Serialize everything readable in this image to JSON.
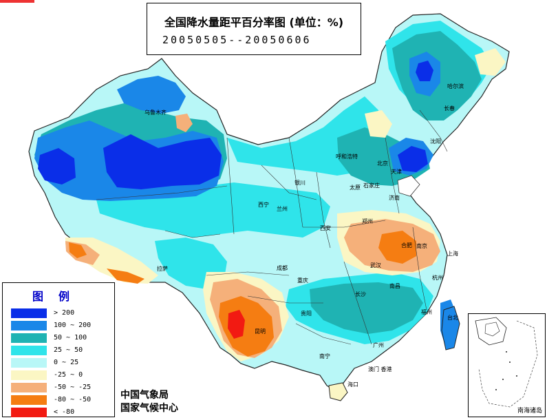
{
  "title": {
    "line1": "全国降水量距平百分率图 (单位：%)",
    "line2": "20050505--20050606"
  },
  "legend": {
    "title": "图例",
    "items": [
      {
        "label": "> 200",
        "color": "#0a2ee8"
      },
      {
        "label": "100 ~ 200",
        "color": "#1a87e8"
      },
      {
        "label": "50 ~ 100",
        "color": "#1fb3b3"
      },
      {
        "label": "25 ~ 50",
        "color": "#2fe4ea"
      },
      {
        "label": "0 ~ 25",
        "color": "#b8f7f7"
      },
      {
        "label": "-25 ~ 0",
        "color": "#fbf6c4"
      },
      {
        "label": "-50 ~ -25",
        "color": "#f5b07a"
      },
      {
        "label": "-80 ~ -50",
        "color": "#f57d12"
      },
      {
        "label": "< -80",
        "color": "#f21a12"
      }
    ]
  },
  "credits": {
    "line1": "中国气象局",
    "line2": "国家气候中心"
  },
  "inset_label": "南海诸岛",
  "cities": [
    {
      "name": "乌鲁木齐"
    },
    {
      "name": "哈尔滨"
    },
    {
      "name": "长春"
    },
    {
      "name": "呼和浩特"
    },
    {
      "name": "北京"
    },
    {
      "name": "天津"
    },
    {
      "name": "沈阳"
    },
    {
      "name": "石家庄"
    },
    {
      "name": "太原"
    },
    {
      "name": "银川"
    },
    {
      "name": "济南"
    },
    {
      "name": "兰州"
    },
    {
      "name": "西宁"
    },
    {
      "name": "西安"
    },
    {
      "name": "郑州"
    },
    {
      "name": "合肥"
    },
    {
      "name": "南京"
    },
    {
      "name": "上海"
    },
    {
      "name": "武汉"
    },
    {
      "name": "成都"
    },
    {
      "name": "重庆"
    },
    {
      "name": "拉萨"
    },
    {
      "name": "贵阳"
    },
    {
      "name": "长沙"
    },
    {
      "name": "南昌"
    },
    {
      "name": "杭州"
    },
    {
      "name": "福州"
    },
    {
      "name": "台北"
    },
    {
      "name": "昆明"
    },
    {
      "name": "南宁"
    },
    {
      "name": "广州"
    },
    {
      "name": "澳门 香港"
    },
    {
      "name": "海口"
    }
  ]
}
